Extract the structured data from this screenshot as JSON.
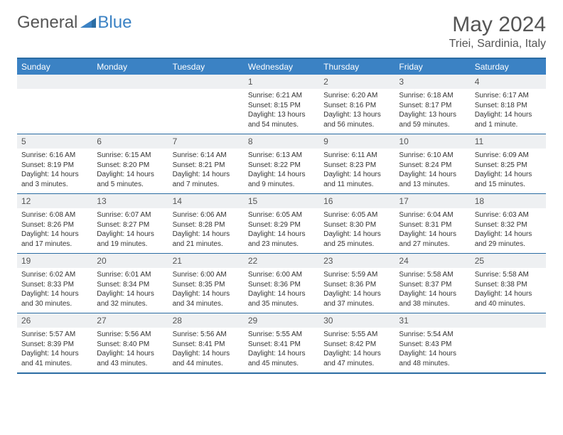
{
  "brand": {
    "part1": "General",
    "part2": "Blue"
  },
  "title": "May 2024",
  "location": "Triei, Sardinia, Italy",
  "columns": [
    "Sunday",
    "Monday",
    "Tuesday",
    "Wednesday",
    "Thursday",
    "Friday",
    "Saturday"
  ],
  "colors": {
    "header_bg": "#3b82c4",
    "header_text": "#ffffff",
    "border": "#2b6ca3",
    "daynum_bg": "#eef0f2",
    "text": "#333333",
    "muted": "#555555"
  },
  "weeks": [
    [
      {
        "day": "",
        "lines": []
      },
      {
        "day": "",
        "lines": []
      },
      {
        "day": "",
        "lines": []
      },
      {
        "day": "1",
        "lines": [
          "Sunrise: 6:21 AM",
          "Sunset: 8:15 PM",
          "Daylight: 13 hours and 54 minutes."
        ]
      },
      {
        "day": "2",
        "lines": [
          "Sunrise: 6:20 AM",
          "Sunset: 8:16 PM",
          "Daylight: 13 hours and 56 minutes."
        ]
      },
      {
        "day": "3",
        "lines": [
          "Sunrise: 6:18 AM",
          "Sunset: 8:17 PM",
          "Daylight: 13 hours and 59 minutes."
        ]
      },
      {
        "day": "4",
        "lines": [
          "Sunrise: 6:17 AM",
          "Sunset: 8:18 PM",
          "Daylight: 14 hours and 1 minute."
        ]
      }
    ],
    [
      {
        "day": "5",
        "lines": [
          "Sunrise: 6:16 AM",
          "Sunset: 8:19 PM",
          "Daylight: 14 hours and 3 minutes."
        ]
      },
      {
        "day": "6",
        "lines": [
          "Sunrise: 6:15 AM",
          "Sunset: 8:20 PM",
          "Daylight: 14 hours and 5 minutes."
        ]
      },
      {
        "day": "7",
        "lines": [
          "Sunrise: 6:14 AM",
          "Sunset: 8:21 PM",
          "Daylight: 14 hours and 7 minutes."
        ]
      },
      {
        "day": "8",
        "lines": [
          "Sunrise: 6:13 AM",
          "Sunset: 8:22 PM",
          "Daylight: 14 hours and 9 minutes."
        ]
      },
      {
        "day": "9",
        "lines": [
          "Sunrise: 6:11 AM",
          "Sunset: 8:23 PM",
          "Daylight: 14 hours and 11 minutes."
        ]
      },
      {
        "day": "10",
        "lines": [
          "Sunrise: 6:10 AM",
          "Sunset: 8:24 PM",
          "Daylight: 14 hours and 13 minutes."
        ]
      },
      {
        "day": "11",
        "lines": [
          "Sunrise: 6:09 AM",
          "Sunset: 8:25 PM",
          "Daylight: 14 hours and 15 minutes."
        ]
      }
    ],
    [
      {
        "day": "12",
        "lines": [
          "Sunrise: 6:08 AM",
          "Sunset: 8:26 PM",
          "Daylight: 14 hours and 17 minutes."
        ]
      },
      {
        "day": "13",
        "lines": [
          "Sunrise: 6:07 AM",
          "Sunset: 8:27 PM",
          "Daylight: 14 hours and 19 minutes."
        ]
      },
      {
        "day": "14",
        "lines": [
          "Sunrise: 6:06 AM",
          "Sunset: 8:28 PM",
          "Daylight: 14 hours and 21 minutes."
        ]
      },
      {
        "day": "15",
        "lines": [
          "Sunrise: 6:05 AM",
          "Sunset: 8:29 PM",
          "Daylight: 14 hours and 23 minutes."
        ]
      },
      {
        "day": "16",
        "lines": [
          "Sunrise: 6:05 AM",
          "Sunset: 8:30 PM",
          "Daylight: 14 hours and 25 minutes."
        ]
      },
      {
        "day": "17",
        "lines": [
          "Sunrise: 6:04 AM",
          "Sunset: 8:31 PM",
          "Daylight: 14 hours and 27 minutes."
        ]
      },
      {
        "day": "18",
        "lines": [
          "Sunrise: 6:03 AM",
          "Sunset: 8:32 PM",
          "Daylight: 14 hours and 29 minutes."
        ]
      }
    ],
    [
      {
        "day": "19",
        "lines": [
          "Sunrise: 6:02 AM",
          "Sunset: 8:33 PM",
          "Daylight: 14 hours and 30 minutes."
        ]
      },
      {
        "day": "20",
        "lines": [
          "Sunrise: 6:01 AM",
          "Sunset: 8:34 PM",
          "Daylight: 14 hours and 32 minutes."
        ]
      },
      {
        "day": "21",
        "lines": [
          "Sunrise: 6:00 AM",
          "Sunset: 8:35 PM",
          "Daylight: 14 hours and 34 minutes."
        ]
      },
      {
        "day": "22",
        "lines": [
          "Sunrise: 6:00 AM",
          "Sunset: 8:36 PM",
          "Daylight: 14 hours and 35 minutes."
        ]
      },
      {
        "day": "23",
        "lines": [
          "Sunrise: 5:59 AM",
          "Sunset: 8:36 PM",
          "Daylight: 14 hours and 37 minutes."
        ]
      },
      {
        "day": "24",
        "lines": [
          "Sunrise: 5:58 AM",
          "Sunset: 8:37 PM",
          "Daylight: 14 hours and 38 minutes."
        ]
      },
      {
        "day": "25",
        "lines": [
          "Sunrise: 5:58 AM",
          "Sunset: 8:38 PM",
          "Daylight: 14 hours and 40 minutes."
        ]
      }
    ],
    [
      {
        "day": "26",
        "lines": [
          "Sunrise: 5:57 AM",
          "Sunset: 8:39 PM",
          "Daylight: 14 hours and 41 minutes."
        ]
      },
      {
        "day": "27",
        "lines": [
          "Sunrise: 5:56 AM",
          "Sunset: 8:40 PM",
          "Daylight: 14 hours and 43 minutes."
        ]
      },
      {
        "day": "28",
        "lines": [
          "Sunrise: 5:56 AM",
          "Sunset: 8:41 PM",
          "Daylight: 14 hours and 44 minutes."
        ]
      },
      {
        "day": "29",
        "lines": [
          "Sunrise: 5:55 AM",
          "Sunset: 8:41 PM",
          "Daylight: 14 hours and 45 minutes."
        ]
      },
      {
        "day": "30",
        "lines": [
          "Sunrise: 5:55 AM",
          "Sunset: 8:42 PM",
          "Daylight: 14 hours and 47 minutes."
        ]
      },
      {
        "day": "31",
        "lines": [
          "Sunrise: 5:54 AM",
          "Sunset: 8:43 PM",
          "Daylight: 14 hours and 48 minutes."
        ]
      },
      {
        "day": "",
        "lines": []
      }
    ]
  ]
}
